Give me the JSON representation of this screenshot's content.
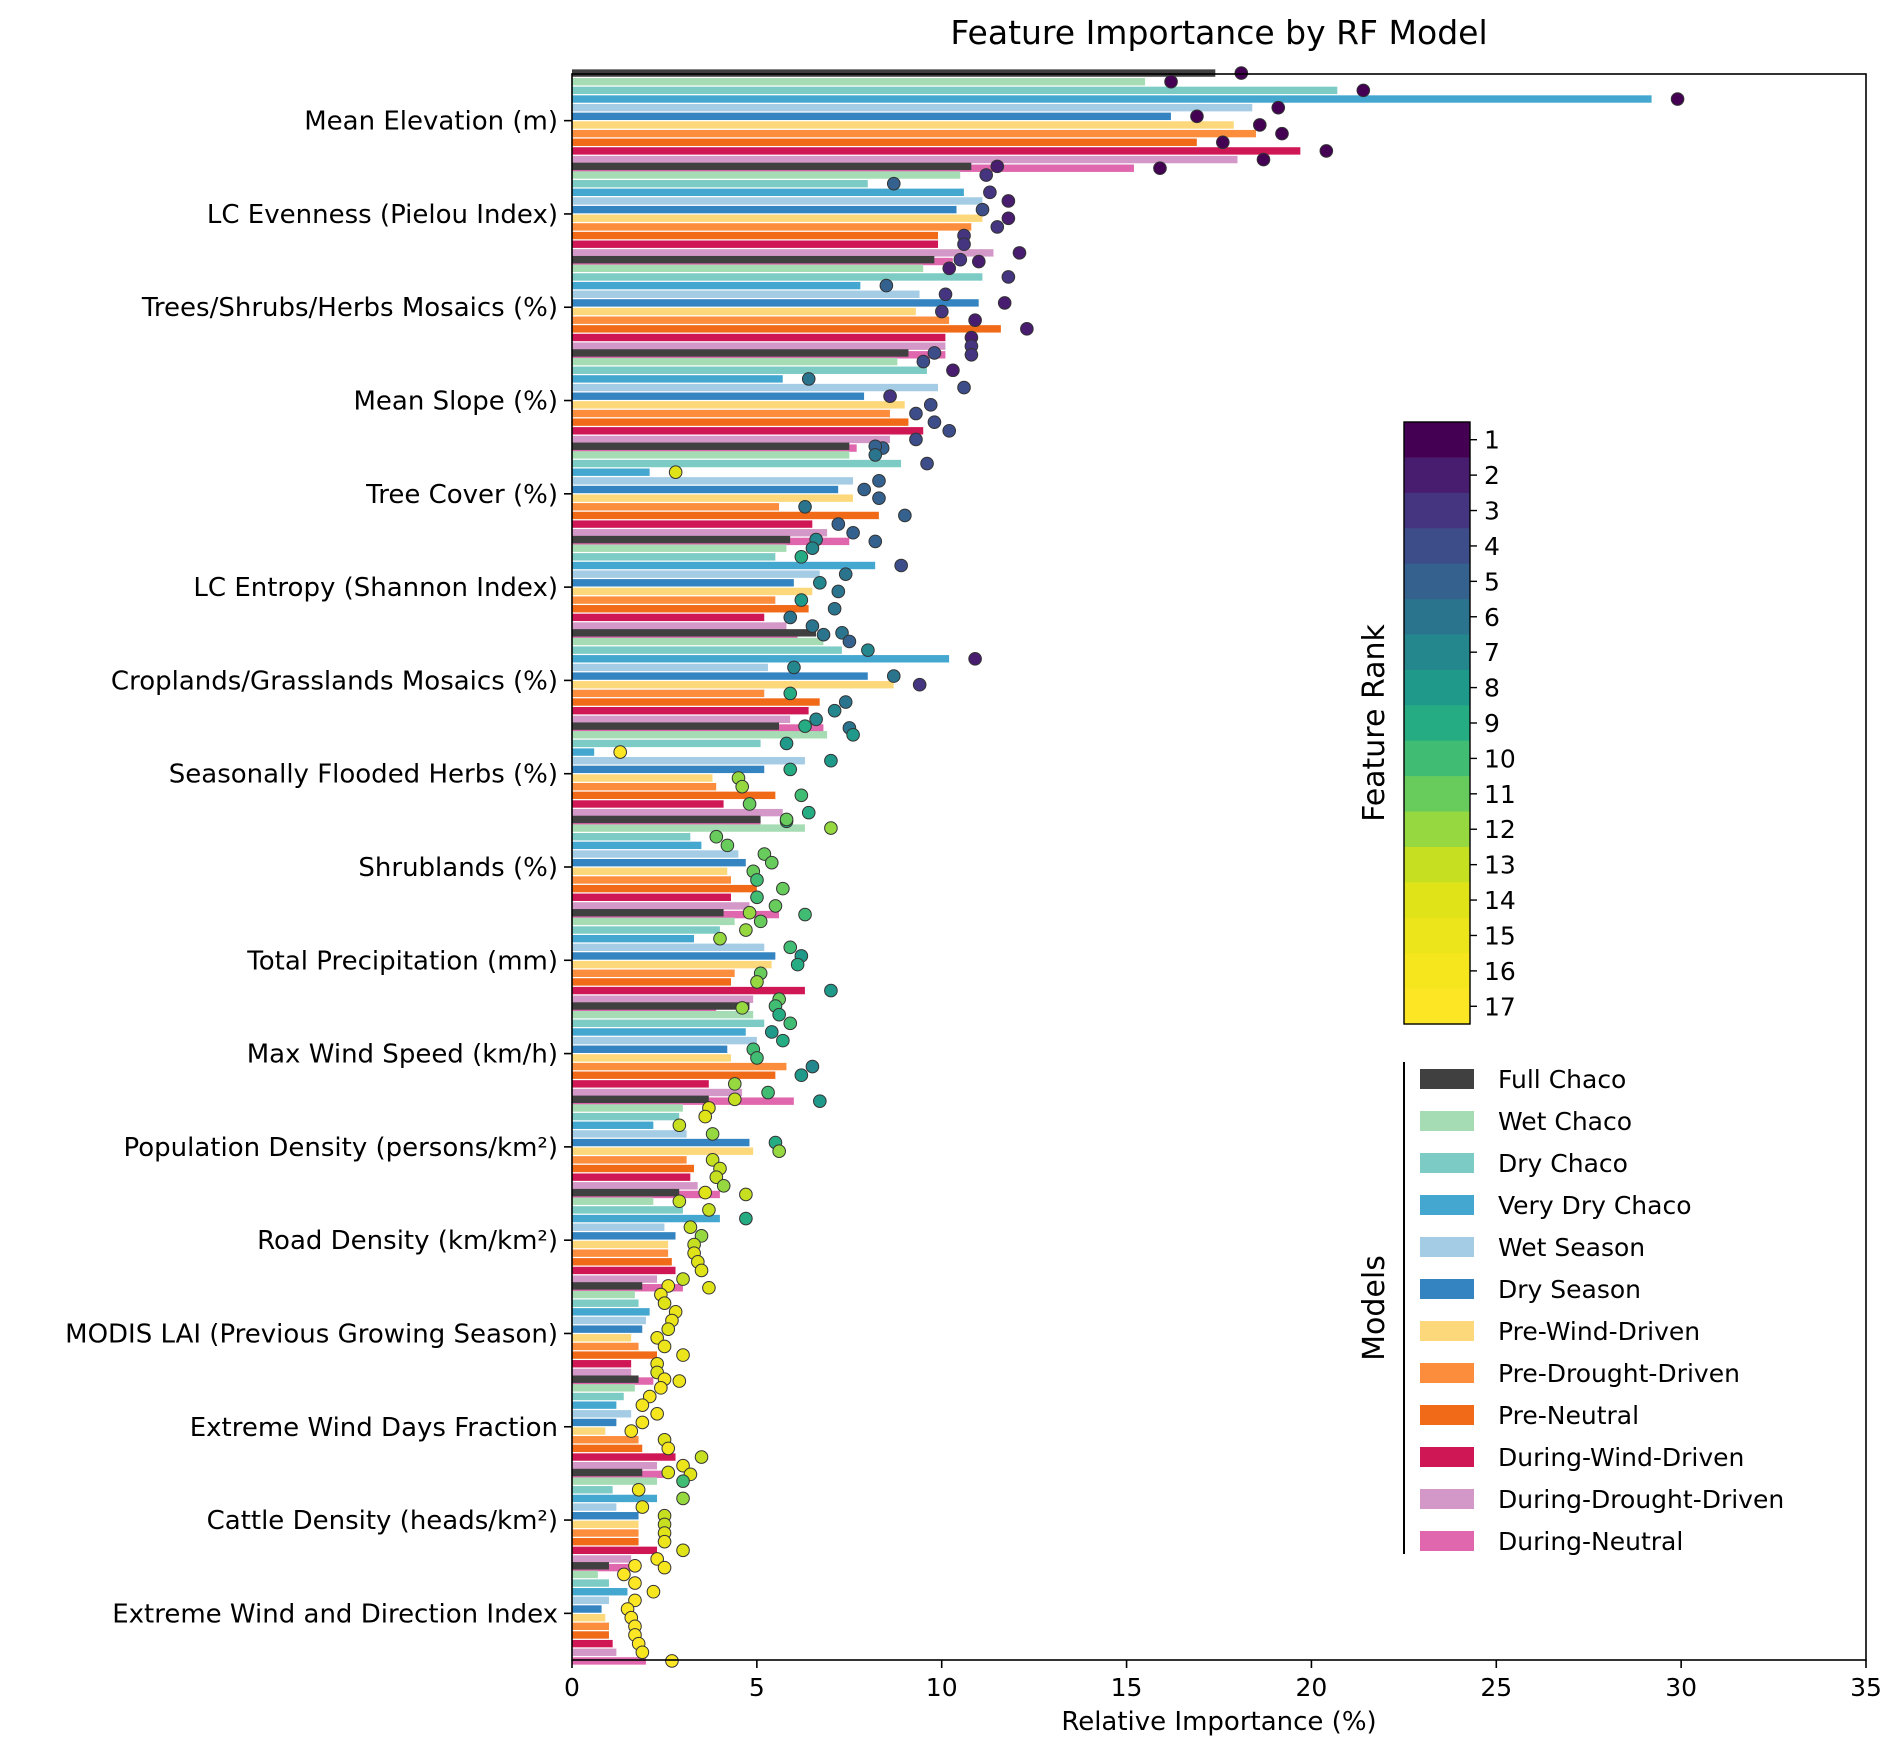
{
  "chart_data": {
    "type": "bar",
    "orientation": "horizontal",
    "title": "Feature Importance by RF Model",
    "xlabel": "Relative Importance (%)",
    "xlim": [
      0,
      35
    ],
    "xticks": [
      0,
      5,
      10,
      15,
      20,
      25,
      30,
      35
    ],
    "categories": [
      "Mean Elevation (m)",
      "LC Evenness (Pielou Index)",
      "Trees/Shrubs/Herbs Mosaics (%)",
      "Mean Slope (%)",
      "Tree Cover (%)",
      "LC Entropy (Shannon Index)",
      "Croplands/Grasslands Mosaics (%)",
      "Seasonally Flooded Herbs (%)",
      "Shrublands (%)",
      "Total Precipitation (mm)",
      "Max Wind Speed (km/h)",
      "Population Density (persons/km²)",
      "Road Density (km/km²)",
      "MODIS LAI (Previous Growing Season)",
      "Extreme Wind Days Fraction",
      "Cattle Density (heads/km²)",
      "Extreme Wind and Direction Index"
    ],
    "legend_title": "Models",
    "legend_position": "right",
    "series": [
      {
        "name": "Full Chaco",
        "color": "#404040",
        "values": [
          17.4,
          10.8,
          9.8,
          9.1,
          7.5,
          5.9,
          6.6,
          5.6,
          5.1,
          4.1,
          4.8,
          3.7,
          2.9,
          1.9,
          1.8,
          1.9,
          1.0
        ]
      },
      {
        "name": "Wet Chaco",
        "color": "#a6dcb4",
        "values": [
          15.5,
          10.5,
          9.5,
          8.8,
          7.5,
          5.8,
          6.8,
          6.9,
          6.3,
          4.4,
          4.9,
          3.0,
          2.2,
          1.7,
          1.7,
          2.3,
          0.7
        ]
      },
      {
        "name": "Dry Chaco",
        "color": "#7ccbc4",
        "values": [
          20.7,
          8.0,
          11.1,
          9.6,
          8.9,
          5.5,
          7.3,
          5.1,
          3.2,
          4.0,
          5.2,
          2.9,
          3.0,
          1.8,
          1.4,
          1.1,
          1.0
        ]
      },
      {
        "name": "Very Dry Chaco",
        "color": "#44a7d0",
        "values": [
          29.2,
          10.6,
          7.8,
          5.7,
          2.1,
          8.2,
          10.2,
          0.6,
          3.5,
          3.3,
          4.7,
          2.2,
          4.0,
          2.1,
          1.2,
          2.3,
          1.5
        ]
      },
      {
        "name": "Wet Season",
        "color": "#a4cce4",
        "values": [
          18.4,
          11.1,
          9.4,
          9.9,
          7.6,
          6.7,
          5.3,
          6.3,
          4.5,
          5.2,
          5.0,
          3.1,
          2.5,
          2.0,
          1.6,
          1.2,
          1.0
        ]
      },
      {
        "name": "Dry Season",
        "color": "#3384c1",
        "values": [
          16.2,
          10.4,
          11.0,
          7.9,
          7.2,
          6.0,
          8.0,
          5.2,
          4.7,
          5.5,
          4.2,
          4.8,
          2.8,
          1.9,
          1.2,
          1.8,
          0.8
        ]
      },
      {
        "name": "Pre-Wind-Driven",
        "color": "#fdd87b",
        "values": [
          17.9,
          11.1,
          9.3,
          9.0,
          7.6,
          6.5,
          8.7,
          3.8,
          4.2,
          5.4,
          4.3,
          4.9,
          2.6,
          1.6,
          0.9,
          1.8,
          0.9
        ]
      },
      {
        "name": "Pre-Drought-Driven",
        "color": "#fc8d3c",
        "values": [
          18.5,
          10.8,
          10.2,
          8.6,
          5.6,
          5.5,
          5.2,
          3.9,
          4.3,
          4.4,
          5.8,
          3.1,
          2.6,
          1.8,
          1.8,
          1.8,
          1.0
        ]
      },
      {
        "name": "Pre-Neutral",
        "color": "#f06a18",
        "values": [
          16.9,
          9.9,
          11.6,
          9.1,
          8.3,
          6.4,
          6.7,
          5.5,
          5.0,
          4.3,
          5.5,
          3.3,
          2.7,
          2.3,
          1.9,
          1.8,
          1.0
        ]
      },
      {
        "name": "During-Wind-Driven",
        "color": "#d01755",
        "values": [
          19.7,
          9.9,
          10.1,
          9.5,
          6.5,
          5.2,
          6.4,
          4.1,
          4.3,
          6.3,
          3.7,
          3.2,
          2.8,
          1.6,
          2.8,
          2.3,
          1.1
        ]
      },
      {
        "name": "During-Drought-Driven",
        "color": "#d398c7",
        "values": [
          18.0,
          11.4,
          10.1,
          8.6,
          6.9,
          5.8,
          5.9,
          5.7,
          4.8,
          4.9,
          4.6,
          3.4,
          2.3,
          1.6,
          2.3,
          1.6,
          1.2
        ]
      },
      {
        "name": "During-Neutral",
        "color": "#e066ad",
        "values": [
          15.2,
          10.3,
          10.1,
          7.7,
          7.5,
          6.1,
          6.8,
          5.1,
          5.6,
          3.9,
          6.0,
          4.0,
          3.0,
          2.2,
          2.5,
          1.8,
          2.0
        ]
      }
    ],
    "ranks": [
      [
        1,
        2,
        3,
        4,
        5,
        7,
        6,
        9,
        11,
        12,
        10,
        13,
        14,
        15,
        16,
        14,
        17
      ],
      [
        1,
        3,
        2,
        4,
        6,
        7,
        5,
        8,
        12,
        11,
        9,
        14,
        13,
        15,
        16,
        10,
        17
      ],
      [
        1,
        5,
        3,
        2,
        4,
        9,
        7,
        8,
        11,
        12,
        10,
        14,
        13,
        14,
        16,
        15,
        17
      ],
      [
        1,
        3,
        5,
        6,
        14,
        4,
        2,
        17,
        11,
        12,
        8,
        13,
        9,
        15,
        16,
        12,
        16
      ],
      [
        1,
        2,
        3,
        4,
        5,
        6,
        7,
        8,
        11,
        10,
        9,
        12,
        13,
        15,
        16,
        15,
        17
      ],
      [
        1,
        4,
        2,
        3,
        5,
        7,
        6,
        9,
        11,
        8,
        10,
        9,
        12,
        14,
        16,
        13,
        17
      ],
      [
        1,
        2,
        3,
        4,
        5,
        6,
        3,
        12,
        11,
        9,
        10,
        12,
        13,
        15,
        16,
        13,
        17
      ],
      [
        1,
        3,
        2,
        4,
        6,
        8,
        9,
        12,
        10,
        11,
        7,
        13,
        14,
        15,
        14,
        14,
        17
      ],
      [
        1,
        3,
        2,
        4,
        5,
        6,
        6,
        10,
        11,
        12,
        8,
        13,
        14,
        15,
        16,
        15,
        17
      ],
      [
        1,
        3,
        2,
        4,
        5,
        6,
        7,
        11,
        10,
        8,
        12,
        13,
        14,
        15,
        13,
        14,
        17
      ],
      [
        1,
        2,
        3,
        4,
        5,
        6,
        7,
        9,
        11,
        11,
        10,
        12,
        13,
        14,
        15,
        16,
        16
      ],
      [
        1,
        2,
        3,
        5,
        5,
        6,
        6,
        9,
        10,
        12,
        8,
        13,
        14,
        15,
        14,
        16,
        17
      ]
    ],
    "rank_scale": {
      "label": "Feature Rank",
      "ticks": [
        1,
        2,
        3,
        4,
        5,
        6,
        7,
        8,
        9,
        10,
        11,
        12,
        13,
        14,
        15,
        16,
        17
      ],
      "colors": [
        "#440154",
        "#481c6e",
        "#453581",
        "#3d4d8a",
        "#34618d",
        "#2b748e",
        "#24878e",
        "#1f998a",
        "#25ac82",
        "#40bd72",
        "#67cc5c",
        "#95d840",
        "#c6e021",
        "#dfe318",
        "#ece51b",
        "#f5e61e",
        "#fde725"
      ]
    }
  }
}
